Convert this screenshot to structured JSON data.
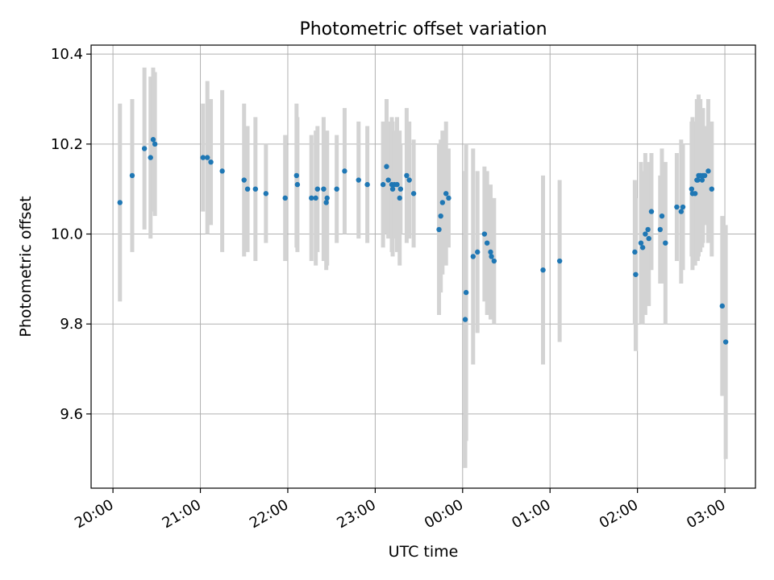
{
  "chart_data": {
    "type": "scatter",
    "title": "Photometric offset variation",
    "xlabel": "UTC time",
    "ylabel": "Photometric offset",
    "x_ticks": [
      "20:00",
      "21:00",
      "22:00",
      "23:00",
      "00:00",
      "01:00",
      "02:00",
      "03:00"
    ],
    "y_ticks": [
      "9.6",
      "9.8",
      "10.0",
      "10.2",
      "10.4"
    ],
    "xlim_hours": [
      19.75,
      27.35
    ],
    "ylim": [
      9.435,
      10.42
    ],
    "grid": true,
    "colors": {
      "marker": "#1f77b4",
      "errorbar": "#d3d3d3",
      "grid": "#b0b0b0"
    },
    "series": [
      {
        "x_hours": [
          20.08,
          20.22,
          20.36,
          20.43,
          20.46,
          20.48,
          21.03,
          21.08,
          21.12,
          21.25,
          21.5,
          21.54,
          21.63,
          21.75,
          21.97,
          22.1,
          22.11,
          22.27,
          22.32,
          22.34,
          22.41,
          22.44,
          22.45,
          22.56,
          22.65,
          22.81,
          22.91,
          23.09,
          23.13,
          23.15,
          23.19,
          23.2,
          23.22,
          23.25,
          23.28,
          23.29,
          23.36,
          23.39,
          23.44,
          23.73,
          23.75,
          23.77,
          23.81,
          23.84,
          24.03,
          24.04,
          24.12,
          24.17,
          24.25,
          24.28,
          24.32,
          24.33,
          24.36,
          24.92,
          25.11,
          25.97,
          25.98,
          26.04,
          26.06,
          26.09,
          26.12,
          26.13,
          26.16,
          26.26,
          26.28,
          26.32,
          26.45,
          26.5,
          26.52,
          26.62,
          26.63,
          26.66,
          26.68,
          26.69,
          26.7,
          26.72,
          26.74,
          26.75,
          26.77,
          26.81,
          26.85,
          26.97,
          27.01
        ],
        "y": [
          10.07,
          10.13,
          10.19,
          10.17,
          10.21,
          10.2,
          10.17,
          10.17,
          10.16,
          10.14,
          10.12,
          10.1,
          10.1,
          10.09,
          10.08,
          10.13,
          10.11,
          10.08,
          10.08,
          10.1,
          10.1,
          10.07,
          10.08,
          10.1,
          10.14,
          10.12,
          10.11,
          10.11,
          10.15,
          10.12,
          10.11,
          10.1,
          10.11,
          10.11,
          10.08,
          10.1,
          10.13,
          10.12,
          10.09,
          10.01,
          10.04,
          10.07,
          10.09,
          10.08,
          9.81,
          9.87,
          9.95,
          9.96,
          10.0,
          9.98,
          9.96,
          9.95,
          9.94,
          9.92,
          9.94,
          9.96,
          9.91,
          9.98,
          9.97,
          10.0,
          10.01,
          9.99,
          10.05,
          10.01,
          10.04,
          9.98,
          10.06,
          10.05,
          10.06,
          10.1,
          10.09,
          10.09,
          10.12,
          10.12,
          10.13,
          10.13,
          10.12,
          10.13,
          10.13,
          10.14,
          10.1,
          9.84,
          9.76
        ],
        "err": [
          0.22,
          0.17,
          0.18,
          0.18,
          0.16,
          0.16,
          0.12,
          0.17,
          0.14,
          0.18,
          0.17,
          0.14,
          0.16,
          0.11,
          0.14,
          0.16,
          0.15,
          0.14,
          0.15,
          0.14,
          0.16,
          0.15,
          0.15,
          0.12,
          0.14,
          0.13,
          0.13,
          0.14,
          0.15,
          0.13,
          0.15,
          0.15,
          0.12,
          0.15,
          0.15,
          0.1,
          0.15,
          0.13,
          0.12,
          0.19,
          0.17,
          0.16,
          0.16,
          0.11,
          0.33,
          0.33,
          0.24,
          0.18,
          0.15,
          0.16,
          0.15,
          0.13,
          0.14,
          0.21,
          0.18,
          0.16,
          0.17,
          0.18,
          0.17,
          0.18,
          0.15,
          0.15,
          0.13,
          0.12,
          0.15,
          0.18,
          0.12,
          0.16,
          0.14,
          0.15,
          0.17,
          0.16,
          0.18,
          0.18,
          0.18,
          0.17,
          0.15,
          0.15,
          0.11,
          0.16,
          0.15,
          0.2,
          0.26
        ]
      }
    ]
  }
}
